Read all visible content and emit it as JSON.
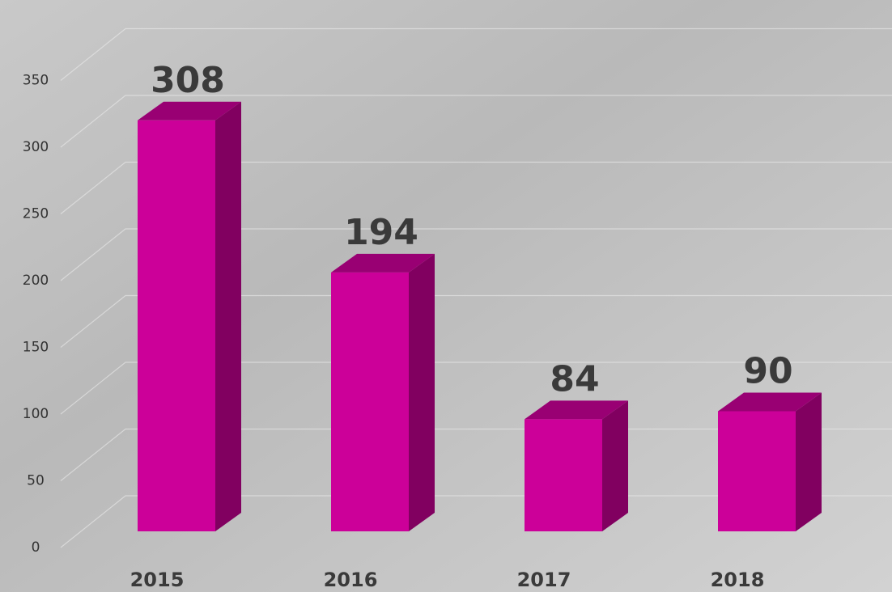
{
  "chart_data": {
    "type": "bar",
    "categories": [
      "2015",
      "2016",
      "2017",
      "2018"
    ],
    "values": [
      308,
      194,
      84,
      90
    ],
    "color": "#cc0099",
    "ylim": [
      0,
      350
    ],
    "yticks": [
      0,
      50,
      100,
      150,
      200,
      250,
      300,
      350
    ],
    "grid": true
  }
}
